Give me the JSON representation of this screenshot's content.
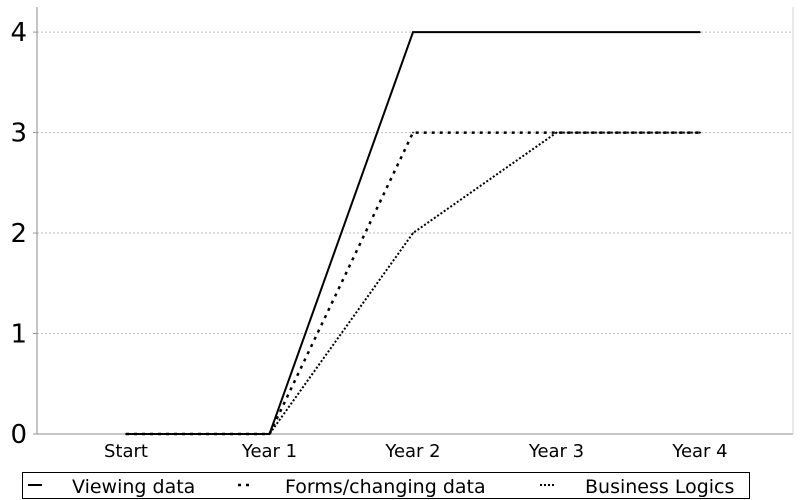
{
  "chart_data": {
    "type": "line",
    "categories": [
      "Start",
      "Year 1",
      "Year 2",
      "Year 3",
      "Year 4"
    ],
    "y_ticks": [
      "0",
      "1",
      "2",
      "3",
      "4"
    ],
    "ylim": [
      0,
      4.25
    ],
    "grid": true,
    "legend_position": "bottom",
    "series": [
      {
        "name": "Viewing data",
        "values": [
          0,
          0,
          4,
          4,
          4
        ],
        "style": "solid",
        "color": "#000000"
      },
      {
        "name": "Forms/changing data",
        "values": [
          0,
          0,
          3,
          3,
          3
        ],
        "style": "dashed",
        "color": "#000000"
      },
      {
        "name": "Business Logics",
        "values": [
          0,
          0,
          2,
          3,
          3
        ],
        "style": "dotted",
        "color": "#000000"
      }
    ]
  }
}
